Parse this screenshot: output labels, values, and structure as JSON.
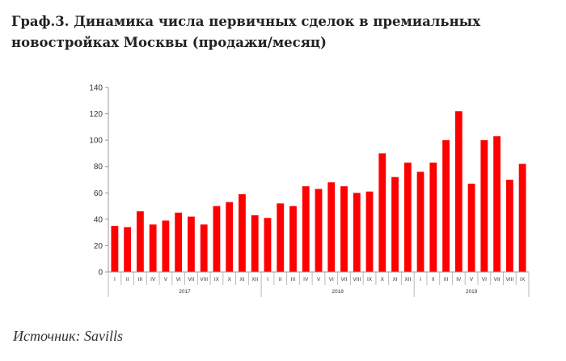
{
  "title": "Граф.3. Динамика числа первичных сделок в премиальных новостройках Москвы (продажи/месяц)",
  "source": "Источник: Savills",
  "colors": {
    "bar": "#ff0000",
    "axis": "#999999",
    "text": "#333333"
  },
  "chart_data": {
    "type": "bar",
    "title": "Граф.3. Динамика числа первичных сделок в премиальных новостройках Москвы (продажи/месяц)",
    "xlabel": "",
    "ylabel": "",
    "ylim": [
      0,
      140
    ],
    "yticks": [
      0,
      20,
      40,
      60,
      80,
      100,
      120,
      140
    ],
    "grid": false,
    "legend": "none",
    "categories": [
      "I",
      "II",
      "III",
      "IV",
      "V",
      "VI",
      "VII",
      "VIII",
      "IX",
      "X",
      "XI",
      "XII",
      "I",
      "II",
      "III",
      "IV",
      "V",
      "VI",
      "VII",
      "VIII",
      "IX",
      "X",
      "XI",
      "XII",
      "I",
      "II",
      "III",
      "IV",
      "V",
      "VI",
      "VII",
      "VIII",
      "IX"
    ],
    "groups": [
      {
        "label": "2017",
        "count": 12
      },
      {
        "label": "2018",
        "count": 12
      },
      {
        "label": "2019",
        "count": 9
      }
    ],
    "values": [
      35,
      34,
      46,
      36,
      39,
      45,
      42,
      36,
      50,
      53,
      59,
      43,
      41,
      52,
      50,
      65,
      63,
      68,
      65,
      60,
      61,
      90,
      72,
      83,
      76,
      83,
      100,
      122,
      67,
      100,
      103,
      70,
      82
    ]
  }
}
